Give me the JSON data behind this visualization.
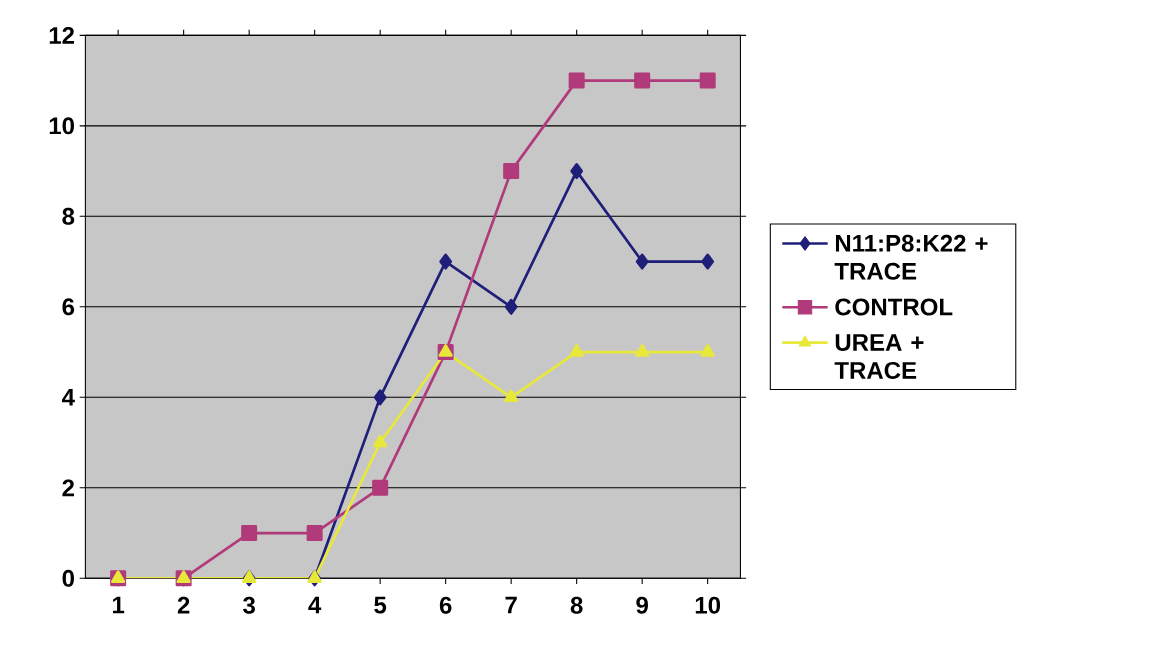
{
  "chart_data": {
    "type": "line",
    "categories": [
      "1",
      "2",
      "3",
      "4",
      "5",
      "6",
      "7",
      "8",
      "9",
      "10"
    ],
    "series": [
      {
        "name": "N11:P8:K22 + TRACE",
        "color": "#1f1f7a",
        "marker": "diamond",
        "values": [
          0,
          0,
          0,
          0,
          4,
          7,
          6,
          9,
          7,
          7
        ]
      },
      {
        "name": "CONTROL",
        "color": "#b03a7a",
        "marker": "square",
        "values": [
          0,
          0,
          1,
          1,
          2,
          5,
          9,
          11,
          11,
          11
        ]
      },
      {
        "name": "UREA + TRACE",
        "color": "#e8e83a",
        "marker": "triangle",
        "values": [
          0,
          0,
          0,
          0,
          3,
          5,
          4,
          5,
          5,
          5
        ]
      }
    ],
    "ylim": [
      0,
      12
    ],
    "yticks": [
      0,
      2,
      4,
      6,
      8,
      10,
      12
    ],
    "grid": "y",
    "legend": "right",
    "line_style": "solid"
  }
}
